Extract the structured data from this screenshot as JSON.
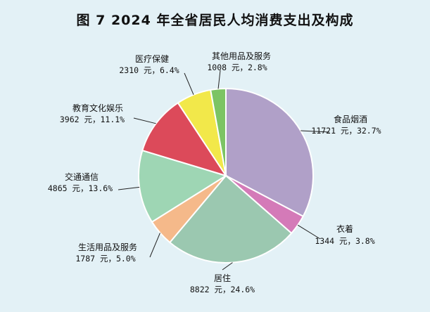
{
  "chart_data": {
    "type": "pie",
    "title": "图 7  2024 年全省居民人均消费支出及构成",
    "start_angle_deg": 0,
    "direction": "clockwise",
    "slices": [
      {
        "name": "食品烟酒",
        "value": 11721,
        "value_label": "11721 元，32.7%",
        "color": "#b0a0c8"
      },
      {
        "name": "衣着",
        "value": 1344,
        "value_label": "1344 元，3.8%",
        "color": "#d47ab8"
      },
      {
        "name": "居住",
        "value": 8822,
        "value_label": "8822 元，24.6%",
        "color": "#9bc8b0"
      },
      {
        "name": "生活用品及服务",
        "value": 1787,
        "value_label": "1787 元，5.0%",
        "color": "#f5b98a"
      },
      {
        "name": "交通通信",
        "value": 4865,
        "value_label": "4865 元，13.6%",
        "color": "#9ed6b4"
      },
      {
        "name": "教育文化娱乐",
        "value": 3962,
        "value_label": "3962 元，11.1%",
        "color": "#dc4a5a"
      },
      {
        "name": "医疗保健",
        "value": 2310,
        "value_label": "2310 元，6.4%",
        "color": "#f2e84a"
      },
      {
        "name": "其他用品及服务",
        "value": 1008,
        "value_label": "1008 元，2.8%",
        "color": "#7cc464"
      }
    ]
  }
}
